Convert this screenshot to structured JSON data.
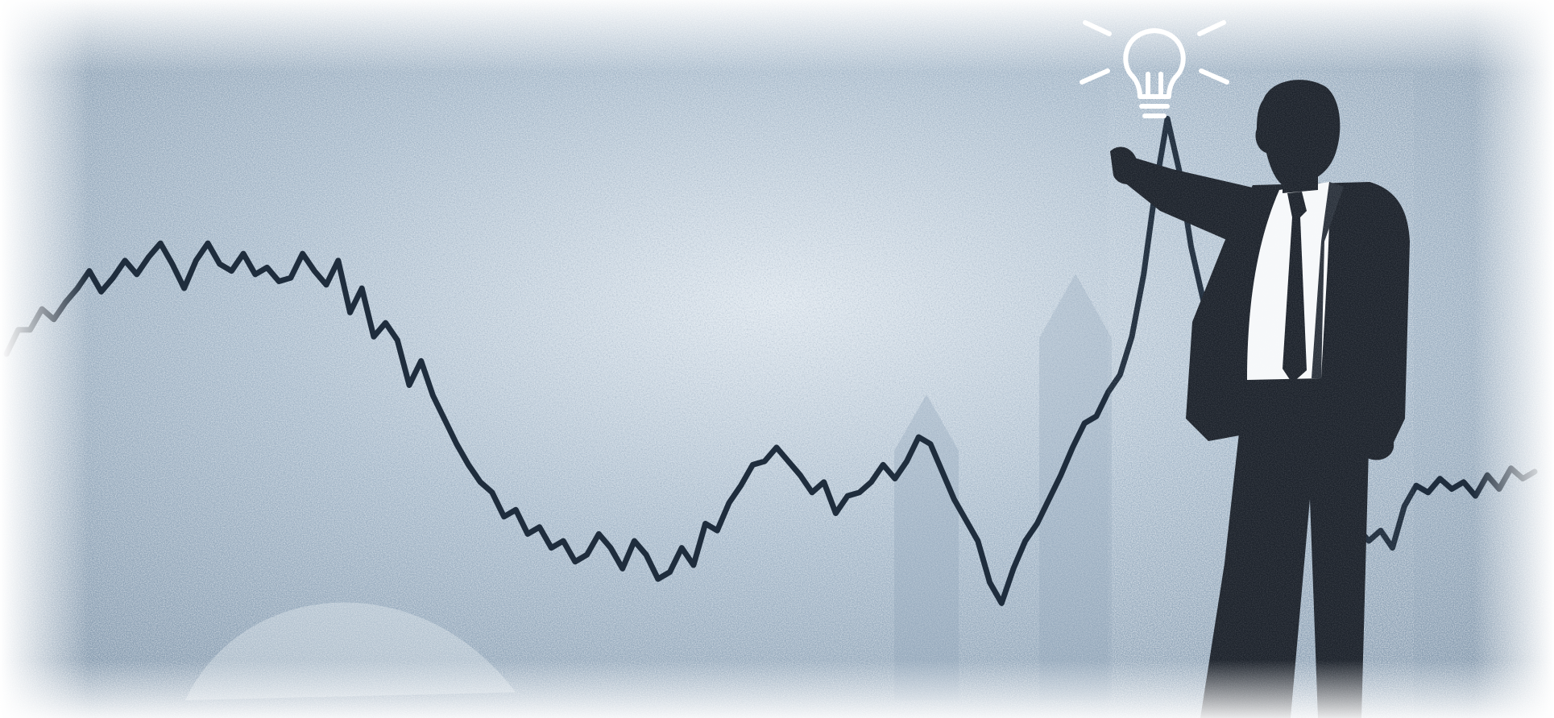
{
  "scene": {
    "colors": {
      "page": "#ffffff",
      "backdrop": "#a9bccd",
      "backdrop_dark": "#7d93a8",
      "backdrop_light": "#dde6ee",
      "line": "#1f2d3d",
      "suit": "#1c222b",
      "shirt": "#f6f8fa",
      "bulb": "#ffffff"
    },
    "icons": [
      "lightbulb-icon"
    ],
    "line_trend": [
      0.14,
      0.21,
      0.21,
      0.27,
      0.24,
      0.29,
      0.33,
      0.38,
      0.32,
      0.36,
      0.41,
      0.37,
      0.42,
      0.46,
      0.4,
      0.33,
      0.41,
      0.46,
      0.4,
      0.38,
      0.43,
      0.37,
      0.39,
      0.35,
      0.36,
      0.43,
      0.38,
      0.34,
      0.41,
      0.26,
      0.33,
      0.19,
      0.23,
      0.18,
      0.05,
      0.12,
      0.02,
      -0.05,
      -0.12,
      -0.18,
      -0.23,
      -0.26,
      -0.33,
      -0.31,
      -0.38,
      -0.36,
      -0.42,
      -0.4,
      -0.46,
      -0.44,
      -0.38,
      -0.42,
      -0.48,
      -0.4,
      -0.44,
      -0.51,
      -0.49,
      -0.42,
      -0.47,
      -0.35,
      -0.37,
      -0.29,
      -0.24,
      -0.18,
      -0.17,
      -0.13,
      -0.17,
      -0.21,
      -0.26,
      -0.23,
      -0.32,
      -0.27,
      -0.26,
      -0.23,
      -0.18,
      -0.22,
      -0.17,
      -0.1,
      -0.12,
      -0.2,
      -0.28,
      -0.34,
      -0.4,
      -0.52,
      -0.58,
      -0.48,
      -0.4,
      -0.35,
      -0.28,
      -0.21,
      -0.13,
      -0.06,
      -0.04,
      0.03,
      0.08,
      0.19,
      0.37,
      0.62,
      0.82,
      0.67,
      0.45,
      0.3,
      0.17,
      0.05,
      0.12,
      0.04,
      0.08,
      0.01,
      0.03,
      -0.04,
      -0.12,
      -0.19,
      -0.26,
      -0.31,
      -0.36,
      -0.4,
      -0.37,
      -0.42,
      -0.3,
      -0.24,
      -0.26,
      -0.22,
      -0.25,
      -0.23,
      -0.27,
      -0.21,
      -0.25,
      -0.19,
      -0.22,
      -0.2
    ]
  }
}
